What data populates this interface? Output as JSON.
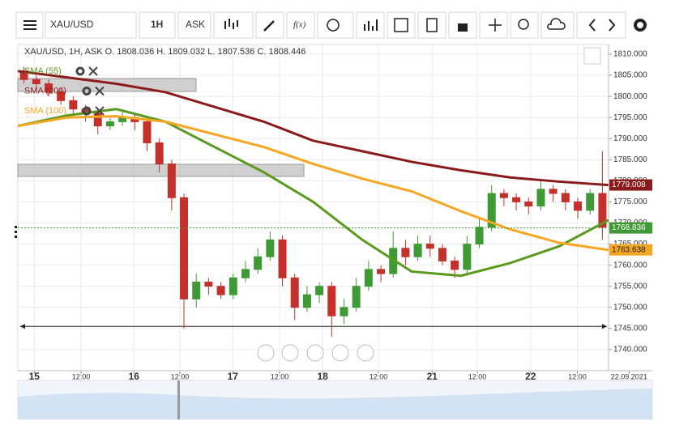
{
  "toolbar": {
    "symbol": "XAU/USD",
    "interval": "1H",
    "price_type": "ASK",
    "function": "f(x)"
  },
  "chart_data": {
    "type": "candlestick",
    "title": "XAU/USD, 1H, ASK   O. 1808.036 H. 1809.032 L. 1807.536 C. 1808.446",
    "x": [
      1.5,
      4.5,
      7.5,
      10.5,
      13.5,
      16.5,
      19.5,
      22.5,
      25.5,
      28.5,
      31.5,
      34.5,
      37.5,
      40.5,
      43.5,
      46.5,
      49.5,
      52.5,
      55.5,
      58.5,
      61.5,
      64.5,
      67.5,
      70.5,
      73.5,
      76.5,
      79.5,
      82.5,
      85.5,
      88.5,
      91.5,
      94.5,
      97.5,
      100.5,
      103.5,
      106.5,
      109.5,
      112.5,
      115.5,
      118.5,
      121.5,
      124.5,
      127.5,
      130.5,
      133.5,
      136.5,
      139.5,
      142.5
    ],
    "open": [
      1806,
      1804,
      1803,
      1801,
      1799,
      1797,
      1796,
      1793,
      1794,
      1795,
      1794,
      1789,
      1784,
      1776,
      1752,
      1756,
      1755,
      1753,
      1757,
      1759,
      1762,
      1766,
      1757,
      1750,
      1753,
      1755,
      1748,
      1750,
      1755,
      1759,
      1758,
      1764,
      1762,
      1765,
      1764,
      1761,
      1759,
      1765,
      1769,
      1777,
      1776,
      1775,
      1774,
      1778,
      1777,
      1775,
      1773,
      1777
    ],
    "high": [
      1807,
      1805,
      1804,
      1802,
      1800,
      1798,
      1797,
      1795,
      1797,
      1796,
      1795,
      1790,
      1785,
      1777,
      1758,
      1757,
      1756,
      1758,
      1761,
      1764,
      1768,
      1767,
      1758,
      1755,
      1756,
      1756,
      1752,
      1757,
      1761,
      1760,
      1768,
      1766,
      1767,
      1767,
      1765,
      1762,
      1767,
      1771,
      1779,
      1778,
      1777,
      1776,
      1780,
      1779,
      1778,
      1776,
      1778,
      1787
    ],
    "low": [
      1803,
      1802,
      1800,
      1798,
      1796,
      1794,
      1791,
      1792,
      1793,
      1792,
      1787,
      1782,
      1773,
      1745,
      1750,
      1753,
      1752,
      1752,
      1756,
      1758,
      1761,
      1755,
      1747,
      1749,
      1751,
      1743,
      1746,
      1749,
      1754,
      1756,
      1757,
      1760,
      1761,
      1762,
      1760,
      1757,
      1758,
      1764,
      1768,
      1774,
      1773,
      1772,
      1773,
      1775,
      1773,
      1771,
      1772,
      1766
    ],
    "close": [
      1804,
      1803,
      1801,
      1799,
      1797,
      1796,
      1793,
      1794,
      1795,
      1794,
      1789,
      1784,
      1776,
      1752,
      1756,
      1755,
      1753,
      1757,
      1759,
      1762,
      1766,
      1757,
      1750,
      1753,
      1755,
      1748,
      1750,
      1755,
      1759,
      1758,
      1764,
      1762,
      1765,
      1764,
      1761,
      1759,
      1765,
      1769,
      1777,
      1776,
      1775,
      1774,
      1778,
      1777,
      1775,
      1773,
      1777,
      1769
    ],
    "up_color": "#3f9a35",
    "down_color": "#c4302b",
    "series": [
      {
        "name": "SMA (55)",
        "color": "#5a9a1e",
        "x": [
          0,
          12,
          24,
          36,
          48,
          60,
          72,
          84,
          96,
          108,
          120,
          132,
          144
        ],
        "values": [
          1793,
          1795.5,
          1797,
          1794,
          1788,
          1782,
          1775,
          1766,
          1758.5,
          1757.5,
          1760.5,
          1764.5,
          1770.7
        ]
      },
      {
        "name": "SMA (200)",
        "color": "#8b1a1a",
        "x": [
          0,
          12,
          24,
          36,
          48,
          60,
          72,
          84,
          96,
          108,
          120,
          132,
          144
        ],
        "values": [
          1806,
          1804.5,
          1803,
          1801,
          1797.5,
          1794,
          1789.5,
          1787,
          1784.5,
          1782.5,
          1780.8,
          1779.8,
          1779
        ],
        "last_value": 1779.008
      },
      {
        "name": "SMA (100)",
        "color": "#f5a623",
        "x": [
          0,
          12,
          24,
          36,
          48,
          60,
          72,
          84,
          96,
          108,
          120,
          132,
          144
        ],
        "values": [
          1793,
          1795,
          1795.3,
          1794,
          1791,
          1788,
          1784,
          1780.5,
          1777.5,
          1772.8,
          1768.5,
          1765.3,
          1763.6
        ],
        "last_value": 1763.638
      }
    ],
    "current_price": 1768.836,
    "current_price_color": "#3f9a35",
    "horizontal_line": 1745.5,
    "xlim": [
      0,
      144
    ],
    "xticks": [
      {
        "value": 4,
        "label": "15"
      },
      {
        "value": 15.4,
        "label": "12:00"
      },
      {
        "value": 28.3,
        "label": "16"
      },
      {
        "value": 39.5,
        "label": "12:00"
      },
      {
        "value": 52.4,
        "label": "17"
      },
      {
        "value": 63.8,
        "label": "12:00"
      },
      {
        "value": 74.3,
        "label": "18"
      },
      {
        "value": 87.9,
        "label": "12:00"
      },
      {
        "value": 101,
        "label": "21"
      },
      {
        "value": 112,
        "label": "12:00"
      },
      {
        "value": 125,
        "label": "22"
      },
      {
        "value": 136.4,
        "label": "12:00"
      },
      {
        "value": 149,
        "label": "22.09.2021"
      }
    ],
    "ylim": [
      1735,
      1812.3
    ],
    "yticks": [
      {
        "value": 1740,
        "label": "1740.000"
      },
      {
        "value": 1745,
        "label": "1745.000"
      },
      {
        "value": 1750,
        "label": "1750.000"
      },
      {
        "value": 1755,
        "label": "1755.000"
      },
      {
        "value": 1760,
        "label": "1760.000"
      },
      {
        "value": 1765,
        "label": "1765.000"
      },
      {
        "value": 1770,
        "label": "1770.000"
      },
      {
        "value": 1775,
        "label": "1775.000"
      },
      {
        "value": 1780,
        "label": "1780.000"
      },
      {
        "value": 1785,
        "label": "1785.000"
      },
      {
        "value": 1790,
        "label": "1790.000"
      },
      {
        "value": 1795,
        "label": "1795.000"
      },
      {
        "value": 1800,
        "label": "1800.000"
      },
      {
        "value": 1805,
        "label": "1805.000"
      },
      {
        "value": 1810,
        "label": "1810.000"
      }
    ],
    "grid": true
  }
}
